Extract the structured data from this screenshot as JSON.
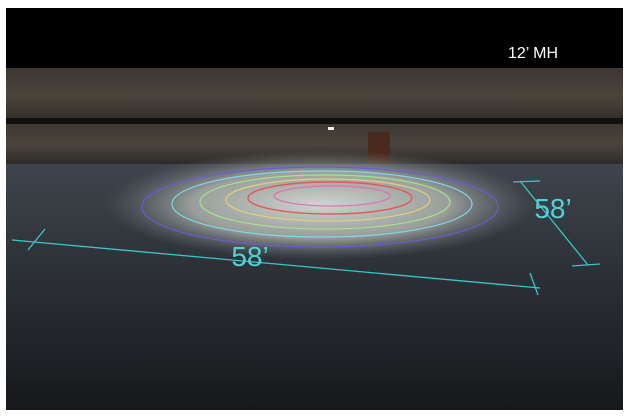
{
  "labels": {
    "mounting_height": "12’ MH",
    "length": "58’",
    "width": "58’"
  }
}
